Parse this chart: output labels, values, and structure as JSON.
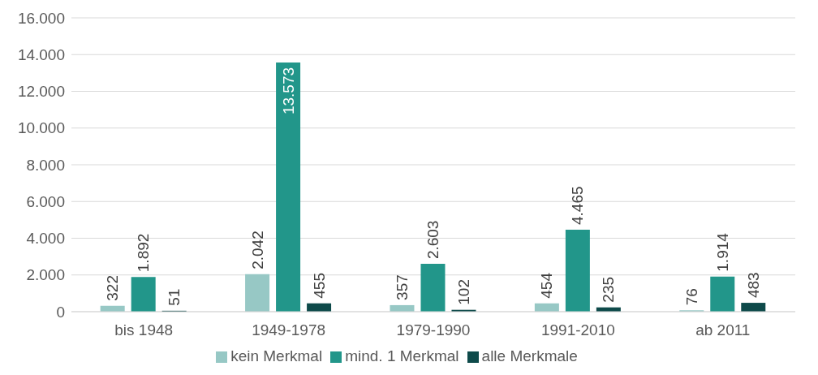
{
  "chart_data": {
    "type": "bar",
    "categories": [
      "bis 1948",
      "1949-1978",
      "1979-1990",
      "1991-2010",
      "ab 2011"
    ],
    "series": [
      {
        "name": "kein Merkmal",
        "color": "#97c8c5",
        "values": [
          322,
          2042,
          357,
          454,
          76
        ],
        "value_labels": [
          "322",
          "2.042",
          "357",
          "454",
          "76"
        ]
      },
      {
        "name": "mind. 1 Merkmal",
        "color": "#22968a",
        "values": [
          1892,
          13573,
          2603,
          4465,
          1914
        ],
        "value_labels": [
          "1.892",
          "13.573",
          "2.603",
          "4.465",
          "1.914"
        ]
      },
      {
        "name": "alle Merkmale",
        "color": "#0e4a4a",
        "values": [
          51,
          455,
          102,
          235,
          483
        ],
        "value_labels": [
          "51",
          "455",
          "102",
          "235",
          "483"
        ]
      }
    ],
    "ylim": [
      0,
      16000
    ],
    "yticks": [
      {
        "value": 0,
        "label": "0"
      },
      {
        "value": 2000,
        "label": "2.000"
      },
      {
        "value": 4000,
        "label": "4.000"
      },
      {
        "value": 6000,
        "label": "6.000"
      },
      {
        "value": 8000,
        "label": "8.000"
      },
      {
        "value": 10000,
        "label": "10.000"
      },
      {
        "value": 12000,
        "label": "12.000"
      },
      {
        "value": 14000,
        "label": "14.000"
      },
      {
        "value": 16000,
        "label": "16.000"
      }
    ],
    "grid": "y",
    "legend": "bottom"
  }
}
